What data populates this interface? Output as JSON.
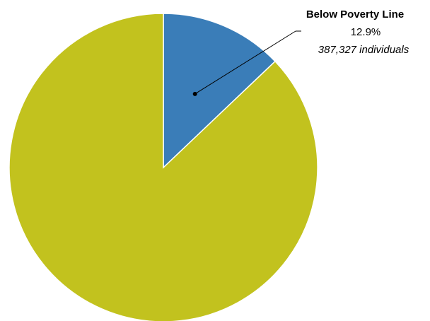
{
  "chart_data": {
    "type": "pie",
    "slices": [
      {
        "label": "Below Poverty Line",
        "percent": 12.9,
        "percent_label": "12.9%",
        "count_label": "387,327 individuals",
        "color": "#3a7db8"
      },
      {
        "label": "",
        "percent": 87.1,
        "color": "#c2c21e"
      }
    ],
    "start": "12-o'clock",
    "direction": "clockwise",
    "slice_border_color": "#ffffff",
    "legend": "none"
  }
}
